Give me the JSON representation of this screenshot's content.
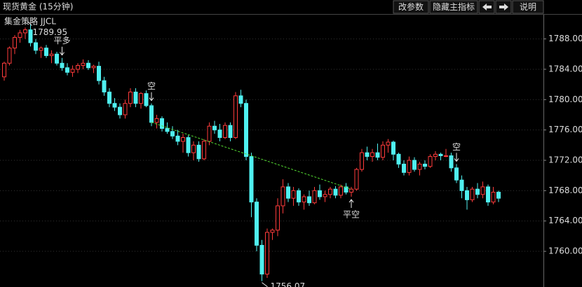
{
  "header": {
    "title": "现货黄金 (15分钟)",
    "buttons": [
      "改参数",
      "隐藏主指标",
      "说明"
    ]
  },
  "chart_data": {
    "type": "candlestick",
    "subtitle": "集金策略 JJCL",
    "up_color": "#ff3b3b",
    "down_color": "#4ff0f0",
    "grid": true,
    "ylim": [
      1755.3,
      1791.1
    ],
    "yticks": [
      {
        "value": 1760,
        "label": "1760.00"
      },
      {
        "value": 1764,
        "label": "1764.00"
      },
      {
        "value": 1768,
        "label": "1768.00"
      },
      {
        "value": 1772,
        "label": "1772.00"
      },
      {
        "value": 1776,
        "label": "1776.00"
      },
      {
        "value": 1780,
        "label": "1780.00"
      },
      {
        "value": 1784,
        "label": "1784.00"
      },
      {
        "value": 1788,
        "label": "1788.00"
      }
    ],
    "max_at": 5,
    "min_at": 49,
    "signals": [
      {
        "label": "平多",
        "at": 11,
        "color": "#33dd33",
        "side": "above"
      },
      {
        "label": "空",
        "at": 28,
        "color": "#33dd33",
        "side": "above"
      },
      {
        "label": "平空",
        "at": 66,
        "color": "#ff3b3b",
        "side": "below"
      },
      {
        "label": "空",
        "at": 86,
        "color": "#33dd33",
        "side": "above"
      }
    ],
    "trade_line": {
      "from": 1,
      "to": 2,
      "color": "#55dd33"
    },
    "ohlc": [
      [
        1783.0,
        1785.0,
        1782.5,
        1784.8
      ],
      [
        1784.8,
        1787.0,
        1784.5,
        1786.8
      ],
      [
        1786.8,
        1788.5,
        1786.0,
        1788.2
      ],
      [
        1788.2,
        1789.2,
        1787.5,
        1788.8
      ],
      [
        1788.8,
        1789.5,
        1788.0,
        1789.2
      ],
      [
        1789.2,
        1789.95,
        1787.0,
        1787.5
      ],
      [
        1787.5,
        1788.0,
        1786.0,
        1786.5
      ],
      [
        1786.5,
        1787.0,
        1785.5,
        1786.8
      ],
      [
        1786.8,
        1787.2,
        1785.5,
        1785.8
      ],
      [
        1785.8,
        1786.5,
        1784.8,
        1786.0
      ],
      [
        1786.0,
        1786.3,
        1784.5,
        1784.8
      ],
      [
        1784.8,
        1785.5,
        1783.8,
        1784.2
      ],
      [
        1784.2,
        1784.8,
        1783.2,
        1783.6
      ],
      [
        1783.6,
        1784.5,
        1783.0,
        1784.0
      ],
      [
        1784.0,
        1784.8,
        1783.5,
        1784.5
      ],
      [
        1784.5,
        1785.3,
        1784.0,
        1784.8
      ],
      [
        1784.8,
        1785.2,
        1783.9,
        1784.2
      ],
      [
        1784.2,
        1784.6,
        1783.5,
        1784.4
      ],
      [
        1784.4,
        1785.0,
        1782.0,
        1782.5
      ],
      [
        1782.5,
        1783.0,
        1780.5,
        1781.0
      ],
      [
        1781.0,
        1781.5,
        1779.0,
        1779.5
      ],
      [
        1779.5,
        1780.2,
        1778.5,
        1779.0
      ],
      [
        1779.0,
        1779.5,
        1777.5,
        1778.0
      ],
      [
        1778.0,
        1780.0,
        1777.5,
        1779.5
      ],
      [
        1779.5,
        1781.5,
        1779.0,
        1781.0
      ],
      [
        1781.0,
        1781.5,
        1779.0,
        1779.5
      ],
      [
        1779.5,
        1781.0,
        1778.8,
        1780.8
      ],
      [
        1780.8,
        1781.2,
        1779.0,
        1779.2
      ],
      [
        1779.2,
        1779.5,
        1776.5,
        1777.0
      ],
      [
        1777.0,
        1778.0,
        1776.2,
        1777.5
      ],
      [
        1777.5,
        1777.8,
        1775.8,
        1776.2
      ],
      [
        1776.2,
        1777.0,
        1775.5,
        1775.8
      ],
      [
        1775.8,
        1776.5,
        1774.8,
        1775.2
      ],
      [
        1775.2,
        1776.0,
        1774.0,
        1774.5
      ],
      [
        1774.5,
        1775.5,
        1773.0,
        1775.0
      ],
      [
        1775.0,
        1775.3,
        1772.5,
        1773.0
      ],
      [
        1773.0,
        1774.5,
        1772.0,
        1774.0
      ],
      [
        1774.0,
        1774.5,
        1771.8,
        1772.2
      ],
      [
        1772.2,
        1774.8,
        1772.0,
        1774.5
      ],
      [
        1774.5,
        1777.0,
        1774.0,
        1776.5
      ],
      [
        1776.5,
        1777.2,
        1775.5,
        1776.0
      ],
      [
        1776.0,
        1776.8,
        1774.5,
        1775.0
      ],
      [
        1775.0,
        1777.0,
        1774.8,
        1776.6
      ],
      [
        1776.6,
        1777.0,
        1774.5,
        1775.0
      ],
      [
        1775.0,
        1781.0,
        1774.8,
        1780.5
      ],
      [
        1780.5,
        1781.3,
        1779.0,
        1779.5
      ],
      [
        1779.5,
        1780.0,
        1772.0,
        1772.5
      ],
      [
        1772.5,
        1773.0,
        1764.5,
        1766.5
      ],
      [
        1766.5,
        1767.0,
        1760.0,
        1760.8
      ],
      [
        1760.8,
        1761.5,
        1756.07,
        1757.0
      ],
      [
        1757.0,
        1763.0,
        1756.5,
        1762.5
      ],
      [
        1762.5,
        1763.0,
        1761.5,
        1762.8
      ],
      [
        1762.8,
        1767.0,
        1762.0,
        1766.0
      ],
      [
        1766.0,
        1769.5,
        1765.0,
        1768.5
      ],
      [
        1768.5,
        1769.0,
        1766.5,
        1767.0
      ],
      [
        1767.0,
        1768.5,
        1766.0,
        1768.0
      ],
      [
        1768.0,
        1768.3,
        1766.0,
        1766.5
      ],
      [
        1766.5,
        1767.5,
        1765.5,
        1767.2
      ],
      [
        1767.2,
        1768.0,
        1766.0,
        1766.4
      ],
      [
        1766.4,
        1768.5,
        1766.2,
        1768.0
      ],
      [
        1768.0,
        1768.8,
        1766.8,
        1767.2
      ],
      [
        1767.2,
        1768.0,
        1766.5,
        1767.5
      ],
      [
        1767.5,
        1768.5,
        1767.0,
        1768.2
      ],
      [
        1768.2,
        1768.6,
        1767.0,
        1767.4
      ],
      [
        1767.4,
        1768.8,
        1767.0,
        1768.5
      ],
      [
        1768.5,
        1769.0,
        1767.5,
        1767.8
      ],
      [
        1767.8,
        1768.5,
        1767.2,
        1768.2
      ],
      [
        1768.2,
        1771.0,
        1768.0,
        1770.8
      ],
      [
        1770.8,
        1773.5,
        1770.5,
        1773.0
      ],
      [
        1773.0,
        1773.8,
        1772.0,
        1772.5
      ],
      [
        1772.5,
        1773.5,
        1771.8,
        1773.0
      ],
      [
        1773.0,
        1774.2,
        1772.0,
        1772.4
      ],
      [
        1772.4,
        1774.5,
        1772.0,
        1774.0
      ],
      [
        1774.0,
        1774.8,
        1773.0,
        1774.4
      ],
      [
        1774.4,
        1774.6,
        1772.0,
        1772.8
      ],
      [
        1772.8,
        1773.0,
        1771.0,
        1771.5
      ],
      [
        1771.5,
        1772.0,
        1770.0,
        1770.4
      ],
      [
        1770.4,
        1772.5,
        1770.0,
        1772.0
      ],
      [
        1772.0,
        1772.4,
        1770.5,
        1770.8
      ],
      [
        1770.8,
        1771.8,
        1770.0,
        1771.5
      ],
      [
        1771.5,
        1772.0,
        1770.8,
        1771.2
      ],
      [
        1771.2,
        1772.8,
        1771.0,
        1772.5
      ],
      [
        1772.5,
        1773.2,
        1772.0,
        1772.8
      ],
      [
        1772.8,
        1773.0,
        1772.0,
        1772.6
      ],
      [
        1772.6,
        1773.5,
        1772.4,
        1772.6
      ],
      [
        1772.6,
        1773.0,
        1770.5,
        1771.0
      ],
      [
        1771.0,
        1771.5,
        1769.0,
        1769.4
      ],
      [
        1769.4,
        1770.0,
        1767.0,
        1768.0
      ],
      [
        1768.0,
        1768.5,
        1765.5,
        1766.8
      ],
      [
        1766.8,
        1768.5,
        1766.5,
        1768.2
      ],
      [
        1768.2,
        1769.0,
        1767.0,
        1767.5
      ],
      [
        1767.5,
        1769.2,
        1767.0,
        1768.5
      ],
      [
        1768.5,
        1768.8,
        1766.0,
        1766.5
      ],
      [
        1766.5,
        1768.5,
        1766.2,
        1767.8
      ],
      [
        1767.8,
        1768.0,
        1766.5,
        1767.0
      ]
    ]
  }
}
